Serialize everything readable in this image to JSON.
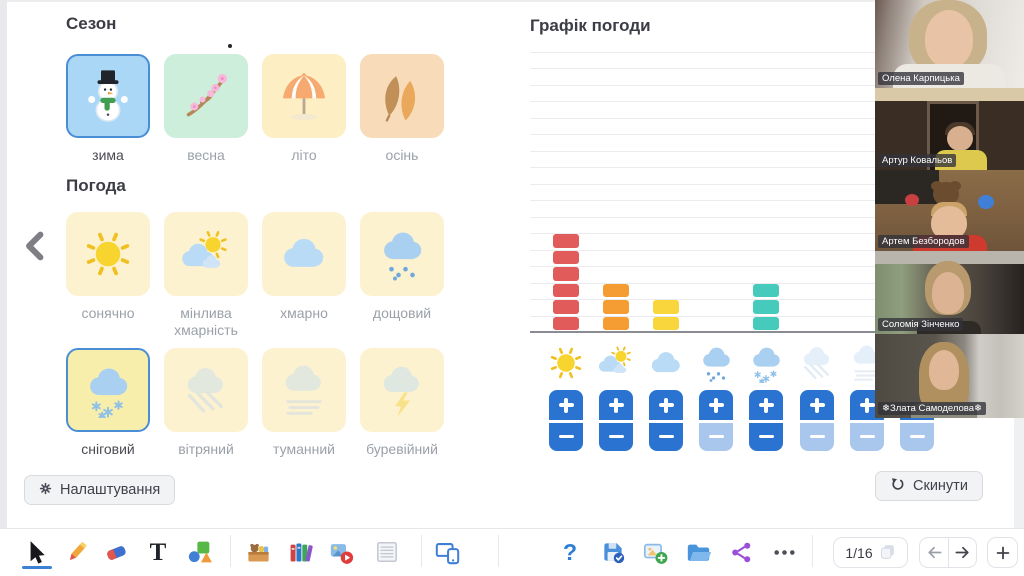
{
  "sections": {
    "season": {
      "title": "Сезон",
      "items": [
        {
          "id": "winter",
          "label": "зима",
          "icon": "snowman-icon",
          "bg": "#a9d7f5",
          "selected": true
        },
        {
          "id": "spring",
          "label": "весна",
          "icon": "blossom-icon",
          "bg": "#cdeeda",
          "selected": false
        },
        {
          "id": "summer",
          "label": "літо",
          "icon": "umbrella-icon",
          "bg": "#fdeec4",
          "selected": false
        },
        {
          "id": "autumn",
          "label": "осінь",
          "icon": "leaves-icon",
          "bg": "#f8dcba",
          "selected": false
        }
      ]
    },
    "weather": {
      "title": "Погода",
      "card_bg": "#fdf2cf",
      "selected_bg": "#f8eeac",
      "selected_border": "#4a8ed6",
      "items": [
        {
          "id": "sunny",
          "label": "сонячно",
          "icon": "sun-icon",
          "selected": false,
          "faded": false
        },
        {
          "id": "partly",
          "label": "мінлива хмарність",
          "icon": "sun-cloud-icon",
          "selected": false,
          "faded": false
        },
        {
          "id": "cloudy",
          "label": "хмарно",
          "icon": "cloud-icon",
          "selected": false,
          "faded": false
        },
        {
          "id": "rainy",
          "label": "дощовий",
          "icon": "rain-cloud-icon",
          "selected": false,
          "faded": false
        },
        {
          "id": "snowy",
          "label": "сніговий",
          "icon": "snow-cloud-icon",
          "selected": true,
          "faded": false
        },
        {
          "id": "windy",
          "label": "вітряний",
          "icon": "wind-cloud-icon",
          "selected": false,
          "faded": true
        },
        {
          "id": "foggy",
          "label": "туманний",
          "icon": "fog-cloud-icon",
          "selected": false,
          "faded": true
        },
        {
          "id": "stormy",
          "label": "буревійний",
          "icon": "storm-cloud-icon",
          "selected": false,
          "faded": true
        }
      ]
    }
  },
  "buttons": {
    "settings": {
      "label": "Налаштування",
      "icon": "gear-icon"
    },
    "reset": {
      "label": "Скинути",
      "icon": "reset-icon"
    },
    "collapse": {
      "icon": "chevron-left-icon"
    }
  },
  "chart_data": {
    "type": "bar",
    "title": "Графік погоди",
    "categories": [
      "сонячно",
      "мінлива хмарність",
      "хмарно",
      "дощовий",
      "сніговий",
      "вітряний",
      "туманний",
      "буревійний"
    ],
    "category_icons": [
      "sun-icon",
      "sun-cloud-icon",
      "cloud-icon",
      "rain-cloud-icon",
      "snow-cloud-icon",
      "wind-cloud-icon",
      "fog-cloud-icon",
      "storm-cloud-icon"
    ],
    "values": [
      6,
      3,
      2,
      0,
      3,
      0,
      0,
      0
    ],
    "colors": [
      "#e25b5b",
      "#f59d33",
      "#f8d63c",
      "#e25b5b",
      "#45cabc",
      "#e25b5b",
      "#e25b5b",
      "#e25b5b"
    ],
    "ylim": [
      0,
      17
    ],
    "grid": true,
    "legend": "none"
  },
  "steppers": {
    "plus_color": "#2b73d1",
    "disabled_minus_color": "#a9c6ec"
  },
  "video_panel": {
    "participants": [
      {
        "name": "Олена Карпицька"
      },
      {
        "name": "Артур Ковальов"
      },
      {
        "name": "Артем Безбородов"
      },
      {
        "name": "Соломія Зінченко"
      },
      {
        "name": "❄Злата Самоделова❄"
      }
    ]
  },
  "toolbar": {
    "tools": [
      {
        "id": "select",
        "icon": "cursor-icon",
        "active": true
      },
      {
        "id": "draw",
        "icon": "pencil-icon",
        "active": false
      },
      {
        "id": "erase",
        "icon": "eraser-icon",
        "active": false
      },
      {
        "id": "text",
        "icon": "text-tool-icon",
        "active": false
      },
      {
        "id": "shapes",
        "icon": "shapes-icon",
        "active": false
      },
      {
        "id": "toybox",
        "icon": "toybox-icon",
        "active": false
      },
      {
        "id": "library",
        "icon": "books-icon",
        "active": false
      },
      {
        "id": "media",
        "icon": "media-icon",
        "active": false
      },
      {
        "id": "notes",
        "icon": "notebook-icon",
        "active": false
      },
      {
        "id": "devices",
        "icon": "devices-icon",
        "active": false
      },
      {
        "id": "help",
        "icon": "help-icon",
        "active": false
      },
      {
        "id": "save",
        "icon": "save-icon",
        "active": false
      },
      {
        "id": "add-slide",
        "icon": "add-slide-icon",
        "active": false
      },
      {
        "id": "open",
        "icon": "folder-icon",
        "active": false
      },
      {
        "id": "share",
        "icon": "share-icon",
        "active": false
      },
      {
        "id": "more",
        "icon": "more-icon",
        "active": false
      }
    ],
    "page_indicator": "1/16",
    "pages_icon": "pages-icon",
    "prev_icon": "arrow-left-icon",
    "next_icon": "arrow-right-icon",
    "add_page_icon": "plus-icon"
  }
}
